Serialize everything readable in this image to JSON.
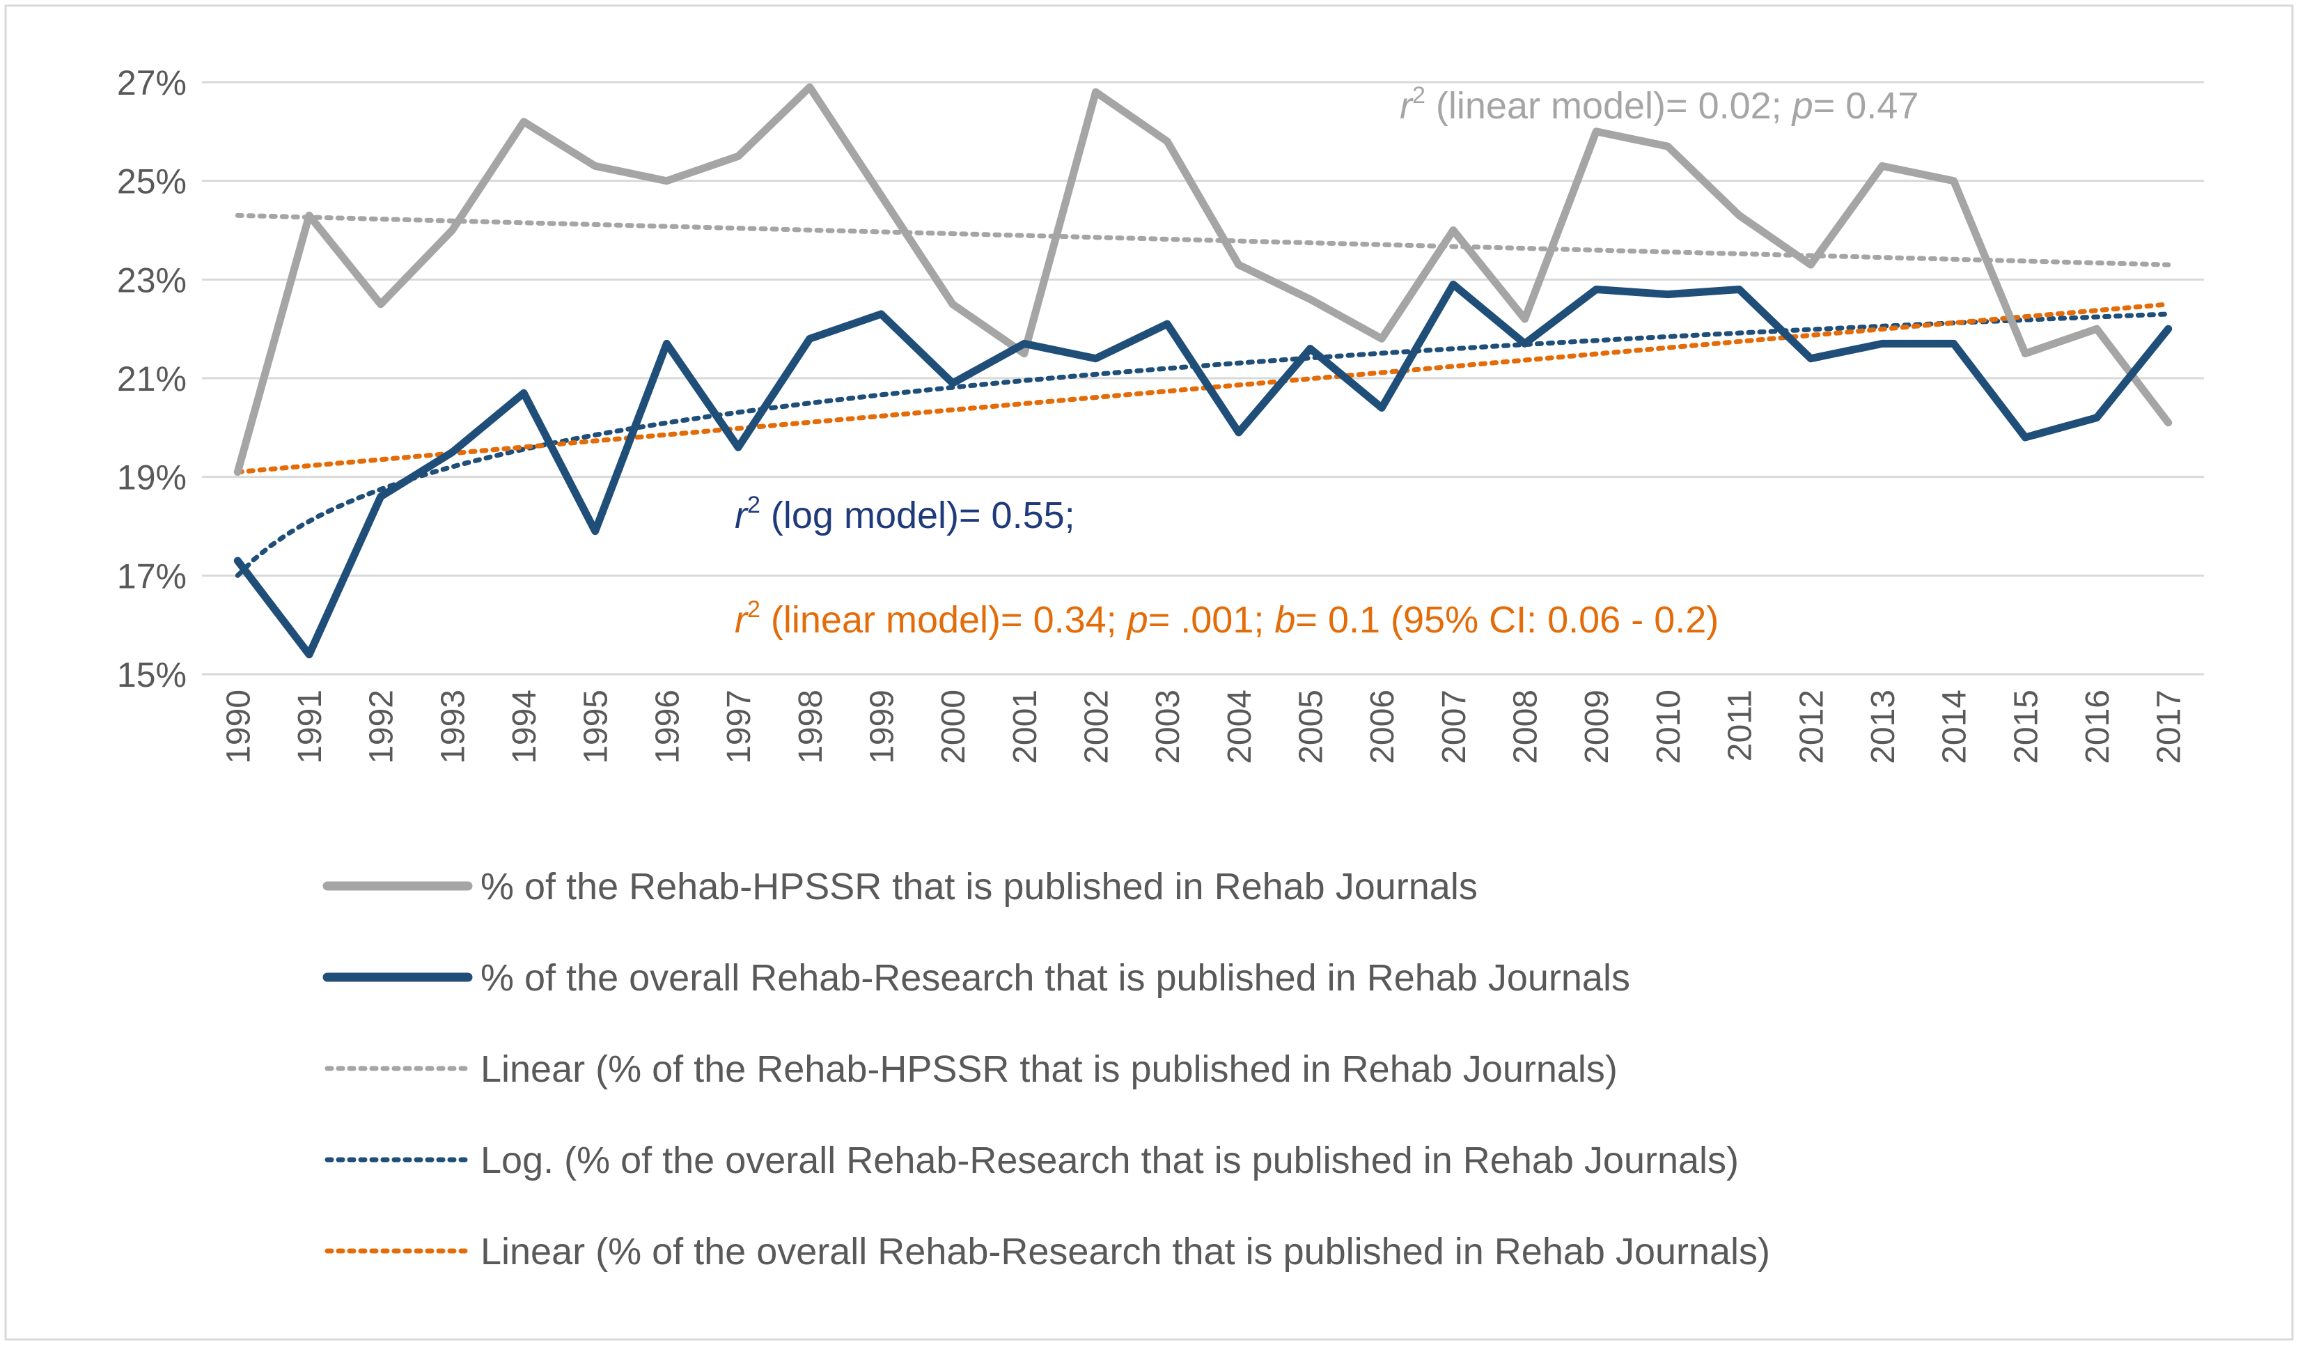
{
  "chart_data": {
    "type": "line",
    "title": "",
    "xlabel": "",
    "ylabel": "",
    "ylim": [
      15,
      27
    ],
    "y_ticks": [
      {
        "value": 15,
        "label": "15%"
      },
      {
        "value": 17,
        "label": "17%"
      },
      {
        "value": 19,
        "label": "19%"
      },
      {
        "value": 21,
        "label": "21%"
      },
      {
        "value": 23,
        "label": "23%"
      },
      {
        "value": 25,
        "label": "25%"
      },
      {
        "value": 27,
        "label": "27%"
      }
    ],
    "categories": [
      "1990",
      "1991",
      "1992",
      "1993",
      "1994",
      "1995",
      "1996",
      "1997",
      "1998",
      "1999",
      "2000",
      "2001",
      "2002",
      "2003",
      "2004",
      "2005",
      "2006",
      "2007",
      "2008",
      "2009",
      "2010",
      "2011",
      "2012",
      "2013",
      "2014",
      "2015",
      "2016",
      "2017"
    ],
    "series": [
      {
        "name": "% of the Rehab-HPSSR that is published in Rehab Journals",
        "style": "solid",
        "color": "#a5a5a5",
        "values": [
          19.1,
          24.3,
          22.5,
          24.0,
          26.2,
          25.3,
          25.0,
          25.5,
          26.9,
          24.7,
          22.5,
          21.5,
          26.8,
          25.8,
          23.3,
          22.6,
          21.8,
          24.0,
          22.2,
          26.0,
          25.7,
          24.3,
          23.3,
          25.3,
          25.0,
          21.5,
          22.0,
          20.1
        ]
      },
      {
        "name": "% of the overall Rehab-Research that is published in Rehab Journals",
        "style": "solid",
        "color": "#1f4e79",
        "values": [
          17.3,
          15.4,
          18.6,
          19.5,
          20.7,
          17.9,
          21.7,
          19.6,
          21.8,
          22.3,
          20.9,
          21.7,
          21.4,
          22.1,
          19.9,
          21.6,
          20.4,
          22.9,
          21.7,
          22.8,
          22.7,
          22.8,
          21.4,
          21.7,
          21.7,
          19.8,
          20.2,
          22.0
        ]
      }
    ],
    "trendlines": [
      {
        "name": "Linear (% of the Rehab-HPSSR that is published in Rehab Journals)",
        "kind": "linear",
        "color": "#a5a5a5",
        "start": 24.3,
        "end": 23.3
      },
      {
        "name": "Log. (% of the overall Rehab-Research that is published in Rehab Journals)",
        "kind": "log",
        "color": "#1f4e79",
        "start": 17.0,
        "end": 22.3
      },
      {
        "name": "Linear (% of the overall Rehab-Research that is published in Rehab Journals)",
        "kind": "linear",
        "color": "#e36c09",
        "start": 19.1,
        "end": 22.5
      }
    ],
    "annotations": [
      {
        "id": "hpssr-linear",
        "color": "#a5a5a5",
        "segments": [
          {
            "text": "r",
            "style": "italic"
          },
          {
            "text": "2",
            "style": "sup"
          },
          {
            "text": " (linear model)= 0.02; ",
            "style": "normal"
          },
          {
            "text": "p",
            "style": "italic"
          },
          {
            "text": "= 0.47",
            "style": "normal"
          }
        ]
      },
      {
        "id": "overall-log",
        "color": "#1f3a7a",
        "segments": [
          {
            "text": "r",
            "style": "italic"
          },
          {
            "text": "2",
            "style": "sup"
          },
          {
            "text": " (log model)= 0.55;",
            "style": "normal"
          }
        ]
      },
      {
        "id": "overall-linear",
        "color": "#e36c09",
        "segments": [
          {
            "text": "r",
            "style": "italic"
          },
          {
            "text": "2",
            "style": "sup"
          },
          {
            "text": " (linear model)= 0.34; ",
            "style": "normal"
          },
          {
            "text": "p",
            "style": "italic"
          },
          {
            "text": "= .001; ",
            "style": "normal"
          },
          {
            "text": "b",
            "style": "italic"
          },
          {
            "text": "= 0.1 (95% CI: 0.06 - 0.2)",
            "style": "normal"
          }
        ]
      }
    ],
    "legend_position": "bottom",
    "grid": true
  }
}
